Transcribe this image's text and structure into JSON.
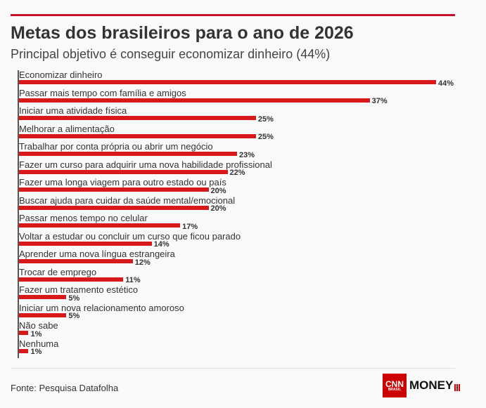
{
  "chart_data": {
    "type": "bar",
    "orientation": "horizontal",
    "title": "Metas dos brasileiros para o ano de 2026",
    "subtitle": "Principal objetivo é conseguir economizar dinheiro (44%)",
    "categories": [
      "Economizar dinheiro",
      "Passar mais tempo com família e amigos",
      "Iniciar uma atividade física",
      "Melhorar a alimentação",
      "Trabalhar por conta própria ou abrir um negócio",
      "Fazer um curso para adquirir uma nova habilidade profissional",
      "Fazer uma longa viagem para outro estado ou país",
      "Buscar ajuda para cuidar da saúde mental/emocional",
      "Passar menos tempo no celular",
      "Voltar a estudar ou concluir um curso que ficou parado",
      "Aprender uma nova língua estrangeira",
      "Trocar de emprego",
      "Fazer um tratamento estético",
      "Iniciar um nova relacionamento amoroso",
      "Não sabe",
      "Nenhuma"
    ],
    "values": [
      44,
      37,
      25,
      25,
      23,
      22,
      20,
      20,
      17,
      14,
      12,
      11,
      5,
      5,
      1,
      1
    ],
    "value_labels": [
      "44%",
      "37%",
      "25%",
      "25%",
      "23%",
      "22%",
      "20%",
      "20%",
      "17%",
      "14%",
      "12%",
      "11%",
      "5%",
      "5%",
      "1%",
      "1%"
    ],
    "bar_color": "#d7191c",
    "xlim": [
      0,
      44
    ],
    "grid": false
  },
  "source": "Fonte: Pesquisa Datafolha",
  "logo": {
    "brand": "CNN",
    "sub": "BRASIL",
    "product": "MONEY"
  }
}
